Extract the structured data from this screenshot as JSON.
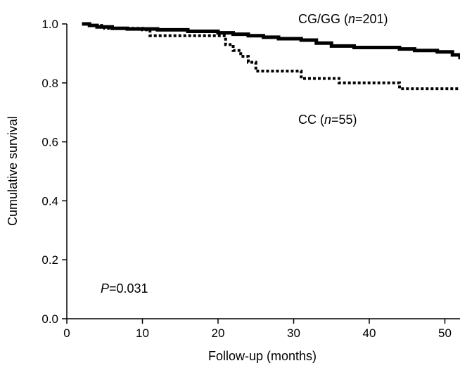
{
  "chart_data": {
    "type": "line",
    "subtype": "kaplan-meier step",
    "xlabel": "Follow-up (months)",
    "ylabel": "Cumulative survival",
    "xlim": [
      0,
      52
    ],
    "ylim": [
      0,
      1.0
    ],
    "xticks": [
      0,
      10,
      20,
      30,
      40,
      50
    ],
    "yticks": [
      0.0,
      0.2,
      0.4,
      0.6,
      0.8,
      1.0
    ],
    "xtick_labels": [
      "0",
      "10",
      "20",
      "30",
      "40",
      "50"
    ],
    "ytick_labels": [
      "0.0",
      "0.2",
      "0.4",
      "0.6",
      "0.8",
      "1.0"
    ],
    "grid": false,
    "series": [
      {
        "name": "CG/GG",
        "label_prefix": "CG/GG (",
        "label_italic": "n",
        "label_suffix": "=201)",
        "style": "solid",
        "color": "#000000",
        "x": [
          2,
          3,
          4,
          6,
          8,
          12,
          16,
          20,
          22,
          24,
          26,
          28,
          31,
          33,
          35,
          38,
          44,
          46,
          49,
          51,
          52
        ],
        "y": [
          1.0,
          0.995,
          0.99,
          0.985,
          0.983,
          0.98,
          0.975,
          0.97,
          0.965,
          0.96,
          0.955,
          0.95,
          0.945,
          0.935,
          0.925,
          0.92,
          0.915,
          0.91,
          0.905,
          0.895,
          0.88
        ]
      },
      {
        "name": "CC",
        "label_prefix": "CC (",
        "label_italic": "n",
        "label_suffix": "=55)",
        "style": "dotted",
        "color": "#000000",
        "x": [
          2,
          3,
          5,
          10,
          11,
          21,
          22,
          23,
          24,
          25,
          31,
          36,
          44,
          52
        ],
        "y": [
          1.0,
          0.995,
          0.985,
          0.98,
          0.96,
          0.93,
          0.91,
          0.89,
          0.87,
          0.84,
          0.815,
          0.8,
          0.78,
          0.78
        ]
      }
    ],
    "annotation": {
      "italic": "P",
      "text": "=0.031"
    }
  }
}
